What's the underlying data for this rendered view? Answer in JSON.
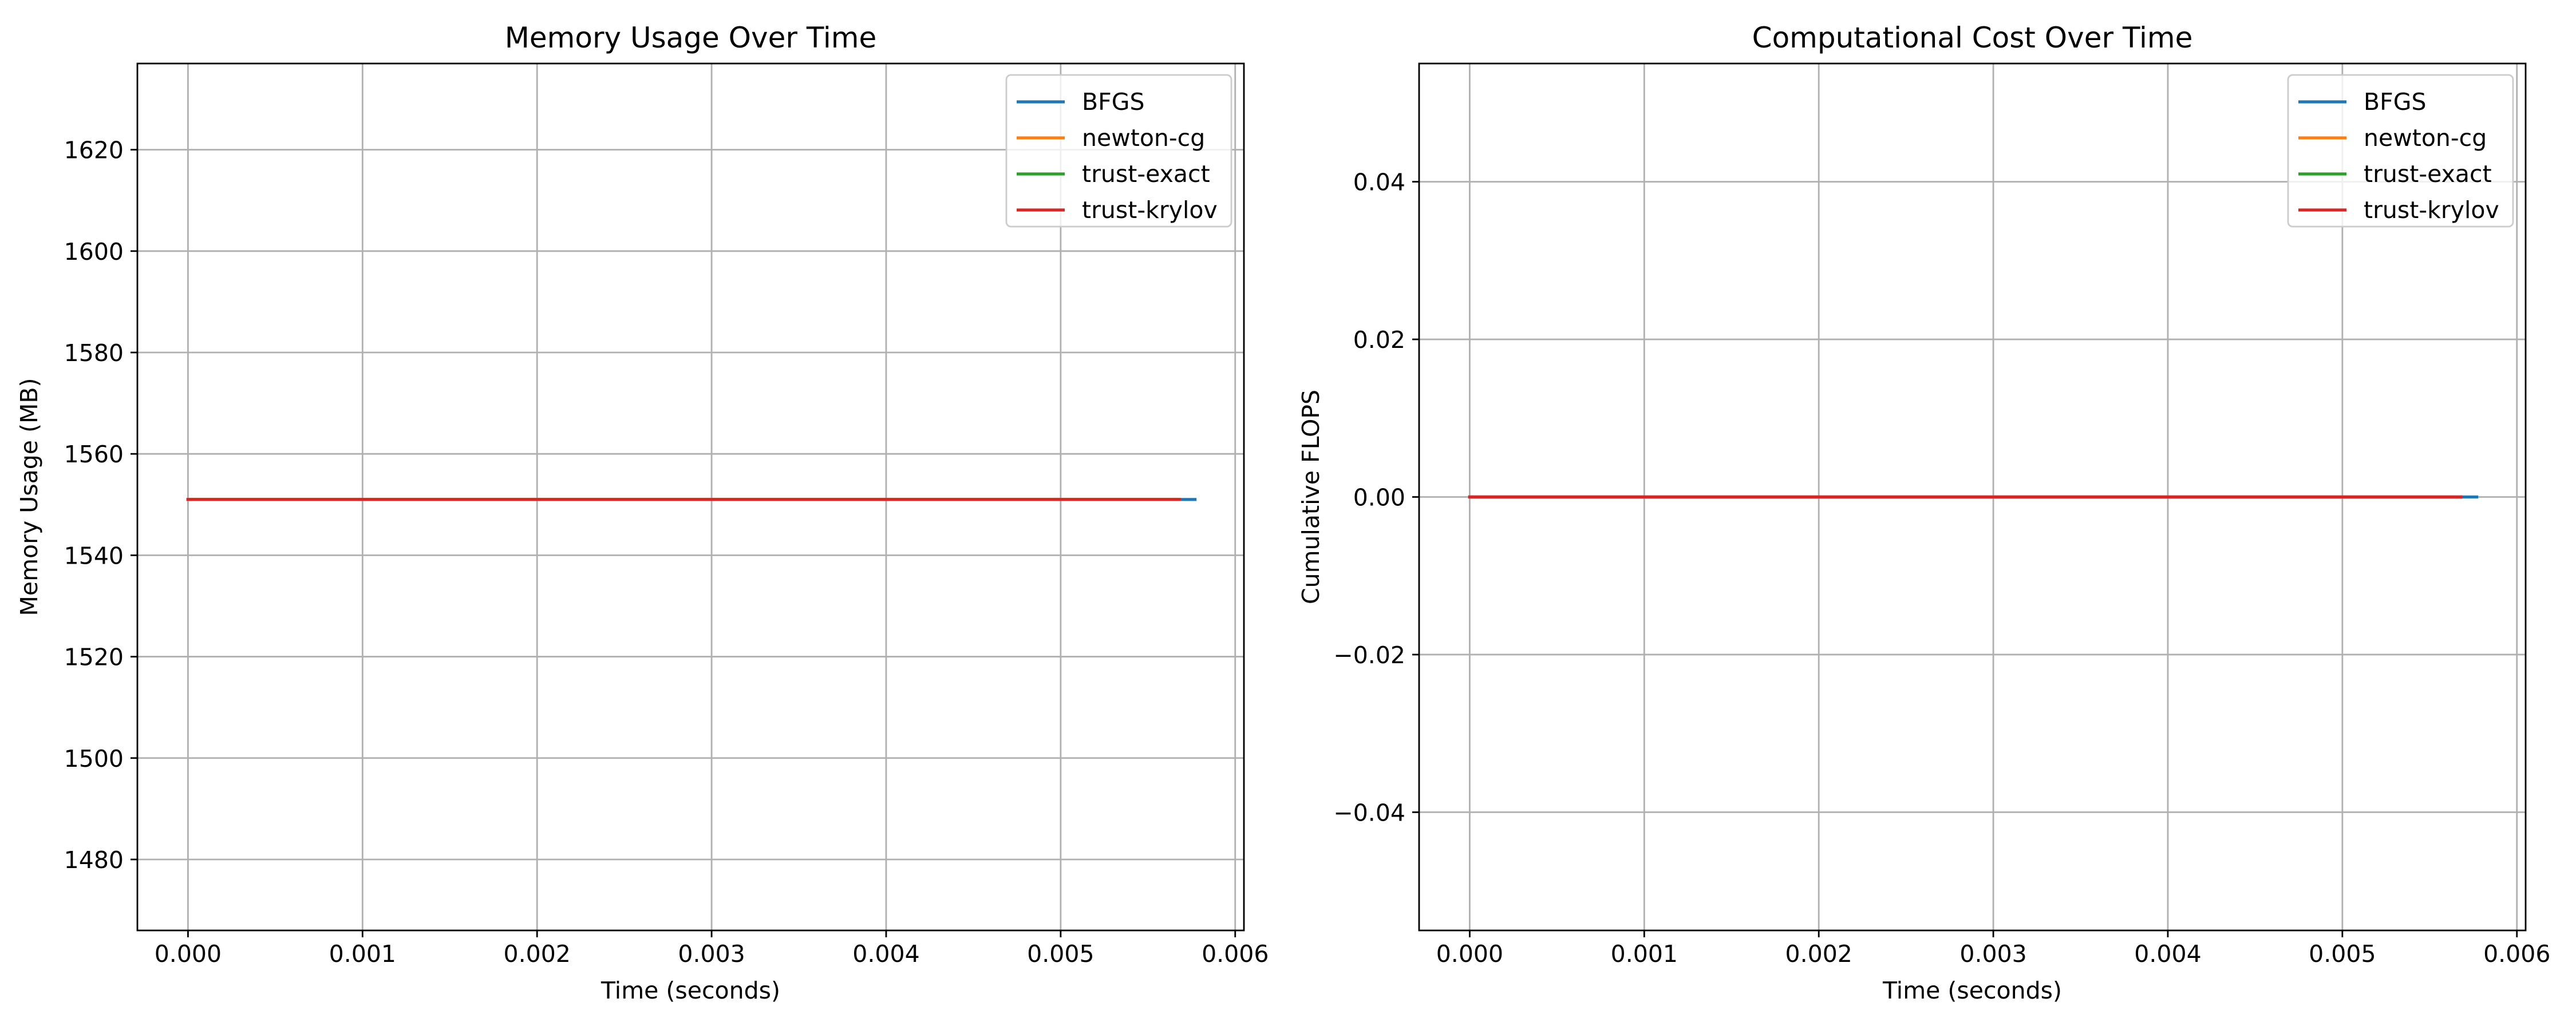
{
  "chart_data": [
    {
      "type": "line",
      "title": "Memory Usage Over Time",
      "xlabel": "Time (seconds)",
      "ylabel": "Memory Usage (MB)",
      "xlim": [
        -0.00029,
        0.00605
      ],
      "ylim": [
        1466,
        1637
      ],
      "xticks": [
        0.0,
        0.001,
        0.002,
        0.003,
        0.004,
        0.005,
        0.006
      ],
      "xtick_labels": [
        "0.000",
        "0.001",
        "0.002",
        "0.003",
        "0.004",
        "0.005",
        "0.006"
      ],
      "yticks": [
        1480,
        1500,
        1520,
        1540,
        1560,
        1580,
        1600,
        1620
      ],
      "ytick_labels": [
        "1480",
        "1500",
        "1520",
        "1540",
        "1560",
        "1580",
        "1600",
        "1620"
      ],
      "grid": true,
      "legend_position": "top-right",
      "series": [
        {
          "name": "BFGS",
          "color": "#1f77b4",
          "x": [
            0.0,
            0.00577
          ],
          "y": [
            1551,
            1551
          ]
        },
        {
          "name": "newton-cg",
          "color": "#ff7f0e",
          "x": [
            0.0,
            0.00568
          ],
          "y": [
            1551,
            1551
          ]
        },
        {
          "name": "trust-exact",
          "color": "#2ca02c",
          "x": [
            0.0,
            0.00568
          ],
          "y": [
            1551,
            1551
          ]
        },
        {
          "name": "trust-krylov",
          "color": "#d62728",
          "x": [
            0.0,
            0.00568
          ],
          "y": [
            1551,
            1551
          ]
        }
      ]
    },
    {
      "type": "line",
      "title": "Computational Cost Over Time",
      "xlabel": "Time (seconds)",
      "ylabel": "Cumulative FLOPS",
      "xlim": [
        -0.00029,
        0.00605
      ],
      "ylim": [
        -0.055,
        0.055
      ],
      "xticks": [
        0.0,
        0.001,
        0.002,
        0.003,
        0.004,
        0.005,
        0.006
      ],
      "xtick_labels": [
        "0.000",
        "0.001",
        "0.002",
        "0.003",
        "0.004",
        "0.005",
        "0.006"
      ],
      "yticks": [
        -0.04,
        -0.02,
        0.0,
        0.02,
        0.04
      ],
      "ytick_labels": [
        "−0.04",
        "−0.02",
        "0.00",
        "0.02",
        "0.04"
      ],
      "grid": true,
      "legend_position": "top-right",
      "series": [
        {
          "name": "BFGS",
          "color": "#1f77b4",
          "x": [
            0.0,
            0.00577
          ],
          "y": [
            0,
            0
          ]
        },
        {
          "name": "newton-cg",
          "color": "#ff7f0e",
          "x": [
            0.0,
            0.00568
          ],
          "y": [
            0,
            0
          ]
        },
        {
          "name": "trust-exact",
          "color": "#2ca02c",
          "x": [
            0.0,
            0.00568
          ],
          "y": [
            0,
            0
          ]
        },
        {
          "name": "trust-krylov",
          "color": "#d62728",
          "x": [
            0.0,
            0.00568
          ],
          "y": [
            0,
            0
          ]
        }
      ]
    }
  ]
}
